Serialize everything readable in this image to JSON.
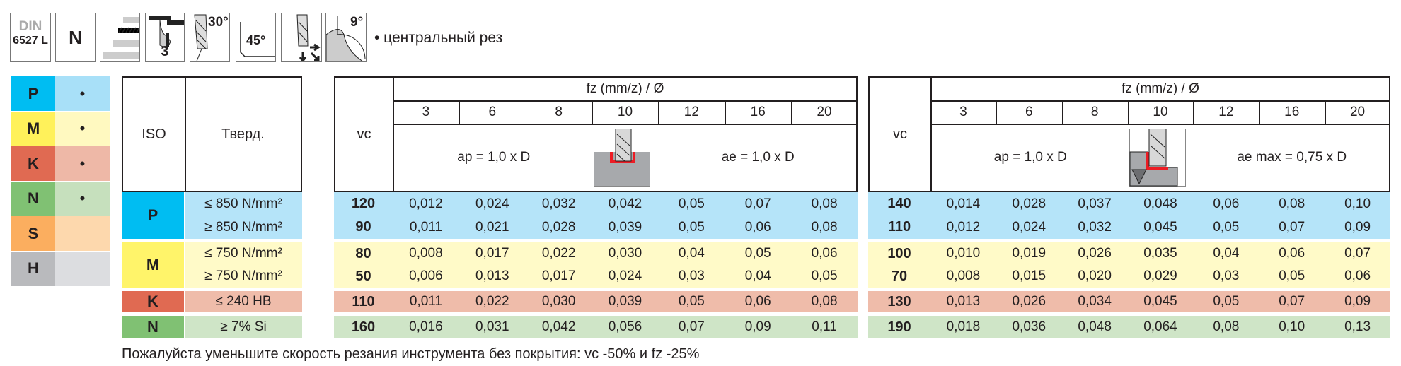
{
  "icons": {
    "din_top": "DIN",
    "din_bottom": "6527 L",
    "type": "N",
    "flutes": "3",
    "helix_angle": "30°",
    "chamfer": "45°",
    "relief_angle": "9°",
    "icon_names": [
      "din-standard-icon",
      "tool-type-n-icon",
      "shank-tolerance-icon",
      "flutes-3-icon",
      "helix-30-icon",
      "chamfer-45-icon",
      "plunge-direction-icon",
      "relief-angle-icon"
    ]
  },
  "note": "• центральный рез",
  "legend": [
    {
      "code": "P",
      "mark": "•",
      "dark": "#00bdf2",
      "light": "#a8e0f8"
    },
    {
      "code": "M",
      "mark": "•",
      "dark": "#fff15a",
      "light": "#fff9c0"
    },
    {
      "code": "K",
      "mark": "•",
      "dark": "#e06a52",
      "light": "#eeb8a7"
    },
    {
      "code": "N",
      "mark": "•",
      "dark": "#80c173",
      "light": "#c6e0bd"
    },
    {
      "code": "S",
      "mark": "",
      "dark": "#fbae5f",
      "light": "#fdd8ad"
    },
    {
      "code": "H",
      "mark": "",
      "dark": "#b9babd",
      "light": "#dcdde0"
    }
  ],
  "table": {
    "iso_header": "ISO",
    "hardness_header": "Тверд.",
    "groups": [
      {
        "iso": "P",
        "dark": "#00bdf2",
        "light": "#b5e4f9",
        "rows": [
          "≤ 850 N/mm²",
          "≥ 850 N/mm²"
        ]
      },
      {
        "iso": "M",
        "dark": "#fff46a",
        "light": "#fffac8",
        "rows": [
          "≤ 750 N/mm²",
          "≥ 750 N/mm²"
        ]
      },
      {
        "iso": "K",
        "dark": "#e06a52",
        "light": "#efbcaa",
        "rows": [
          "≤ 240 HB"
        ]
      },
      {
        "iso": "N",
        "dark": "#80c173",
        "light": "#cfe5c7",
        "rows": [
          "≥ 7% Si"
        ]
      }
    ]
  },
  "blocks": [
    {
      "vc_header": "vc",
      "fz_header": "fz (mm/z) / Ø",
      "diameters": [
        "3",
        "6",
        "8",
        "10",
        "12",
        "16",
        "20"
      ],
      "ap": "ap = 1,0 x D",
      "ae": "ae = 1,0 x D",
      "image": "slot-milling-icon",
      "rows": [
        {
          "vc": "120",
          "fz": [
            "0,012",
            "0,024",
            "0,032",
            "0,042",
            "0,05",
            "0,07",
            "0,08"
          ]
        },
        {
          "vc": "90",
          "fz": [
            "0,011",
            "0,021",
            "0,028",
            "0,039",
            "0,05",
            "0,06",
            "0,08"
          ]
        },
        {
          "vc": "80",
          "fz": [
            "0,008",
            "0,017",
            "0,022",
            "0,030",
            "0,04",
            "0,05",
            "0,06"
          ]
        },
        {
          "vc": "50",
          "fz": [
            "0,006",
            "0,013",
            "0,017",
            "0,024",
            "0,03",
            "0,04",
            "0,05"
          ]
        },
        {
          "vc": "110",
          "fz": [
            "0,011",
            "0,022",
            "0,030",
            "0,039",
            "0,05",
            "0,06",
            "0,08"
          ]
        },
        {
          "vc": "160",
          "fz": [
            "0,016",
            "0,031",
            "0,042",
            "0,056",
            "0,07",
            "0,09",
            "0,11"
          ]
        }
      ]
    },
    {
      "vc_header": "vc",
      "fz_header": "fz (mm/z) / Ø",
      "diameters": [
        "3",
        "6",
        "8",
        "10",
        "12",
        "16",
        "20"
      ],
      "ap": "ap = 1,0 x D",
      "ae": "ae max = 0,75 x D",
      "image": "side-milling-icon",
      "rows": [
        {
          "vc": "140",
          "fz": [
            "0,014",
            "0,028",
            "0,037",
            "0,048",
            "0,06",
            "0,08",
            "0,10"
          ]
        },
        {
          "vc": "110",
          "fz": [
            "0,012",
            "0,024",
            "0,032",
            "0,045",
            "0,05",
            "0,07",
            "0,09"
          ]
        },
        {
          "vc": "100",
          "fz": [
            "0,010",
            "0,019",
            "0,026",
            "0,035",
            "0,04",
            "0,06",
            "0,07"
          ]
        },
        {
          "vc": "70",
          "fz": [
            "0,008",
            "0,015",
            "0,020",
            "0,029",
            "0,03",
            "0,05",
            "0,06"
          ]
        },
        {
          "vc": "130",
          "fz": [
            "0,013",
            "0,026",
            "0,034",
            "0,045",
            "0,05",
            "0,07",
            "0,09"
          ]
        },
        {
          "vc": "190",
          "fz": [
            "0,018",
            "0,036",
            "0,048",
            "0,064",
            "0,08",
            "0,10",
            "0,13"
          ]
        }
      ]
    }
  ],
  "footer": "Пожалуйста уменьшите скорость резания инструмента без покрытия: vc -50% и fz -25%"
}
